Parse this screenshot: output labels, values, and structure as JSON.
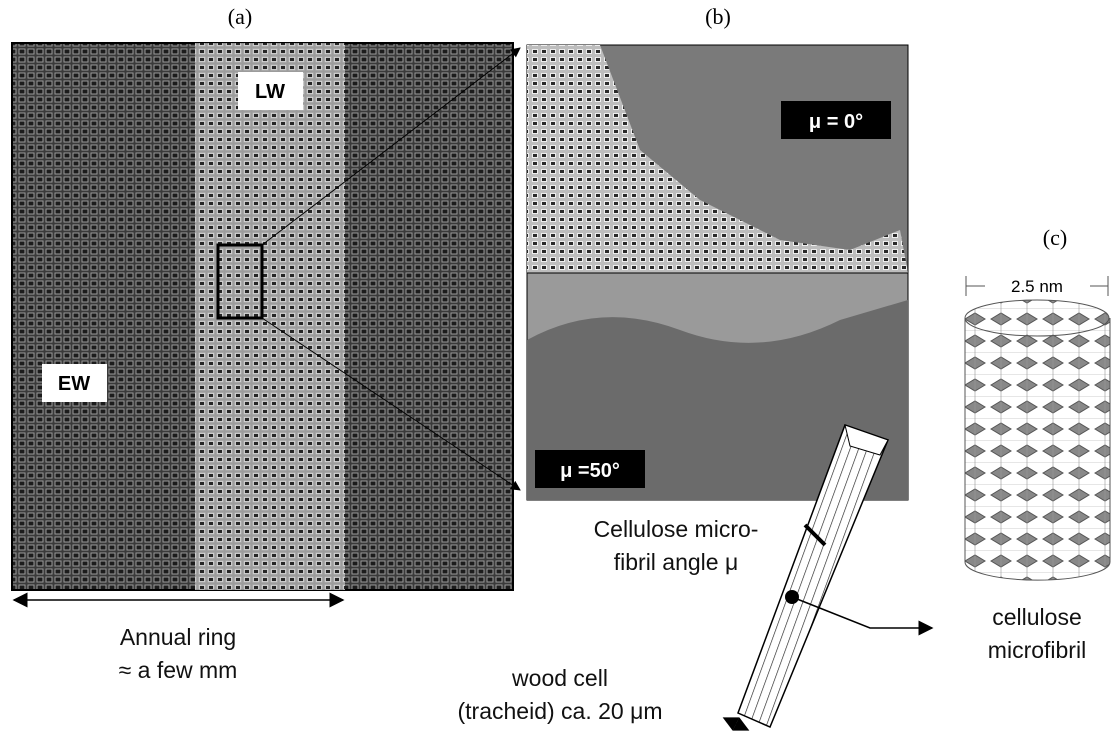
{
  "panel_a": {
    "label": "(a)",
    "latewood": "LW",
    "earlywood": "EW",
    "caption": [
      "Annual ring",
      "≈ a few mm"
    ]
  },
  "panel_b": {
    "label": "(b)",
    "top_angle": "μ = 0°",
    "bottom_angle": "μ =50°",
    "fibril_caption": [
      "Cellulose micro-",
      "fibril angle μ"
    ],
    "cell_caption": [
      "wood cell",
      "(tracheid) ca. 20 μm"
    ]
  },
  "panel_c": {
    "label": "(c)",
    "diameter": "2.5 nm",
    "caption": [
      "cellulose",
      "microfibril"
    ]
  }
}
